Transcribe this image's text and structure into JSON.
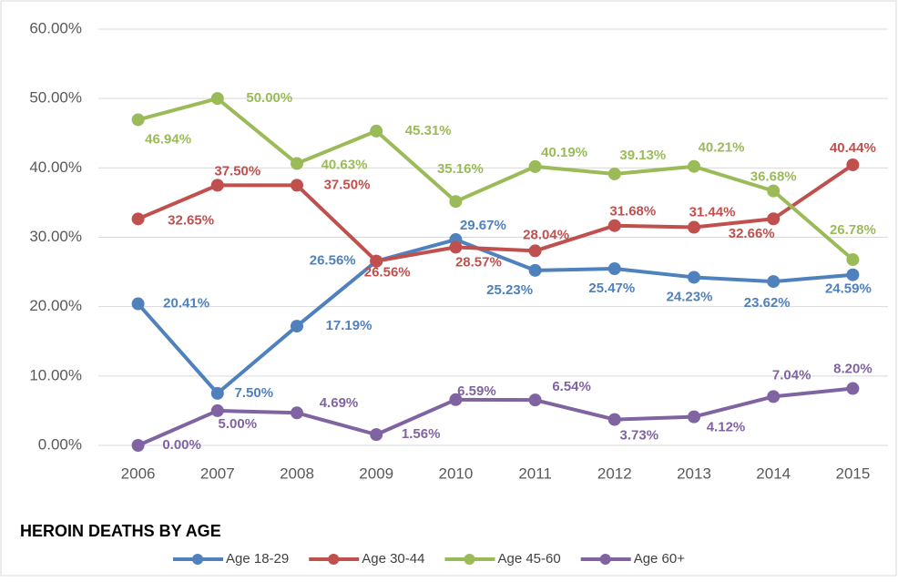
{
  "chart_data": {
    "type": "line",
    "title": "HEROIN DEATHS BY AGE",
    "categories": [
      "2006",
      "2007",
      "2008",
      "2009",
      "2010",
      "2011",
      "2012",
      "2013",
      "2014",
      "2015"
    ],
    "series": [
      {
        "name": "Age 18-29",
        "color": "#4f81bd",
        "values": [
          20.41,
          7.5,
          17.19,
          26.56,
          29.67,
          25.23,
          25.47,
          24.23,
          23.62,
          24.59
        ],
        "value_labels": [
          "20.41%",
          "7.50%",
          "17.19%",
          "26.56%",
          "29.67%",
          "25.23%",
          "25.47%",
          "24.23%",
          "23.62%",
          "24.59%"
        ]
      },
      {
        "name": "Age 30-44",
        "color": "#c0504d",
        "values": [
          32.65,
          37.5,
          37.5,
          26.56,
          28.57,
          28.04,
          31.68,
          31.44,
          32.66,
          40.44
        ],
        "value_labels": [
          "32.65%",
          "37.50%",
          "37.50%",
          "26.56%",
          "28.57%",
          "28.04%",
          "31.68%",
          "31.44%",
          "32.66%",
          "40.44%"
        ]
      },
      {
        "name": "Age 45-60",
        "color": "#9bbb59",
        "values": [
          46.94,
          50.0,
          40.63,
          45.31,
          35.16,
          40.19,
          39.13,
          40.21,
          36.68,
          26.78
        ],
        "value_labels": [
          "46.94%",
          "50.00%",
          "40.63%",
          "45.31%",
          "35.16%",
          "40.19%",
          "39.13%",
          "40.21%",
          "36.68%",
          "26.78%"
        ]
      },
      {
        "name": "Age 60+",
        "color": "#8064a2",
        "values": [
          0.0,
          5.0,
          4.69,
          1.56,
          6.59,
          6.54,
          3.73,
          4.12,
          7.04,
          8.2
        ],
        "value_labels": [
          "0.00%",
          "5.00%",
          "4.69%",
          "1.56%",
          "6.59%",
          "6.54%",
          "3.73%",
          "4.12%",
          "7.04%",
          "8.20%"
        ]
      }
    ],
    "ylim": [
      0,
      60
    ],
    "yticks": [
      {
        "value": 0,
        "label": "0.00%"
      },
      {
        "value": 10,
        "label": "10.00%"
      },
      {
        "value": 20,
        "label": "20.00%"
      },
      {
        "value": 30,
        "label": "30.00%"
      },
      {
        "value": 40,
        "label": "40.00%"
      },
      {
        "value": 50,
        "label": "50.00%"
      },
      {
        "value": 60,
        "label": "60.00%"
      }
    ],
    "grid": true,
    "legend": "bottom"
  }
}
